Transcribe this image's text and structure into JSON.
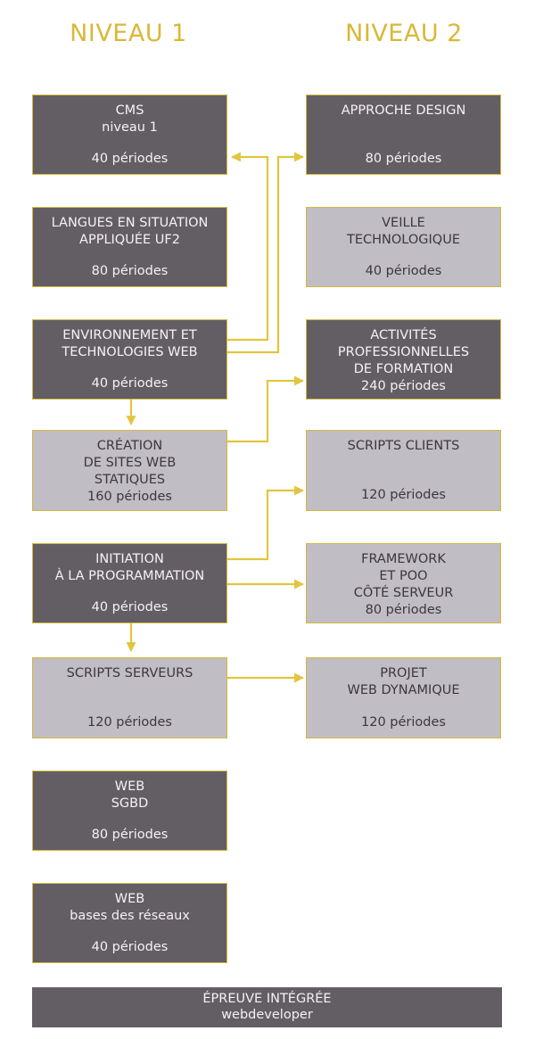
{
  "headers": {
    "level1": "NIVEAU 1",
    "level2": "NIVEAU 2"
  },
  "level1": [
    {
      "title": "CMS\nniveau 1",
      "periods": "40 périodes",
      "tone": "dark"
    },
    {
      "title": "LANGUES EN SITUATION\nAPPLIQUÉE UF2",
      "periods": "80 périodes",
      "tone": "dark"
    },
    {
      "title": "ENVIRONNEMENT ET\nTECHNOLOGIES WEB",
      "periods": "40 périodes",
      "tone": "dark"
    },
    {
      "title": "CRÉATION\nDE SITES WEB\nSTATIQUES",
      "periods": "160 périodes",
      "tone": "light"
    },
    {
      "title": "INITIATION\nÀ LA PROGRAMMATION",
      "periods": "40 périodes",
      "tone": "dark"
    },
    {
      "title": "SCRIPTS SERVEURS",
      "periods": "120 périodes",
      "tone": "light"
    },
    {
      "title": "WEB\nSGBD",
      "periods": "80 périodes",
      "tone": "dark"
    },
    {
      "title": "WEB\nbases des réseaux",
      "periods": "40 périodes",
      "tone": "dark"
    }
  ],
  "level2": [
    {
      "title": "APPROCHE DESIGN",
      "periods": "80 périodes",
      "tone": "dark"
    },
    {
      "title": "VEILLE\nTECHNOLOGIQUE",
      "periods": "40 périodes",
      "tone": "light"
    },
    {
      "title": "ACTIVITÉS\nPROFESSIONNELLES\nDE FORMATION",
      "periods": "240 périodes",
      "tone": "dark"
    },
    {
      "title": "SCRIPTS CLIENTS",
      "periods": "120 périodes",
      "tone": "light"
    },
    {
      "title": "FRAMEWORK\nET POO\nCÔTÉ SERVEUR",
      "periods": "80 périodes",
      "tone": "light"
    },
    {
      "title": "PROJET\nWEB DYNAMIQUE",
      "periods": "120 périodes",
      "tone": "light"
    }
  ],
  "footer": {
    "title": "ÉPREUVE INTÉGRÉE",
    "subtitle": "webdeveloper"
  },
  "colors": {
    "accent": "#d9b838",
    "dark": "#635e63",
    "light": "#c1bdc4"
  }
}
